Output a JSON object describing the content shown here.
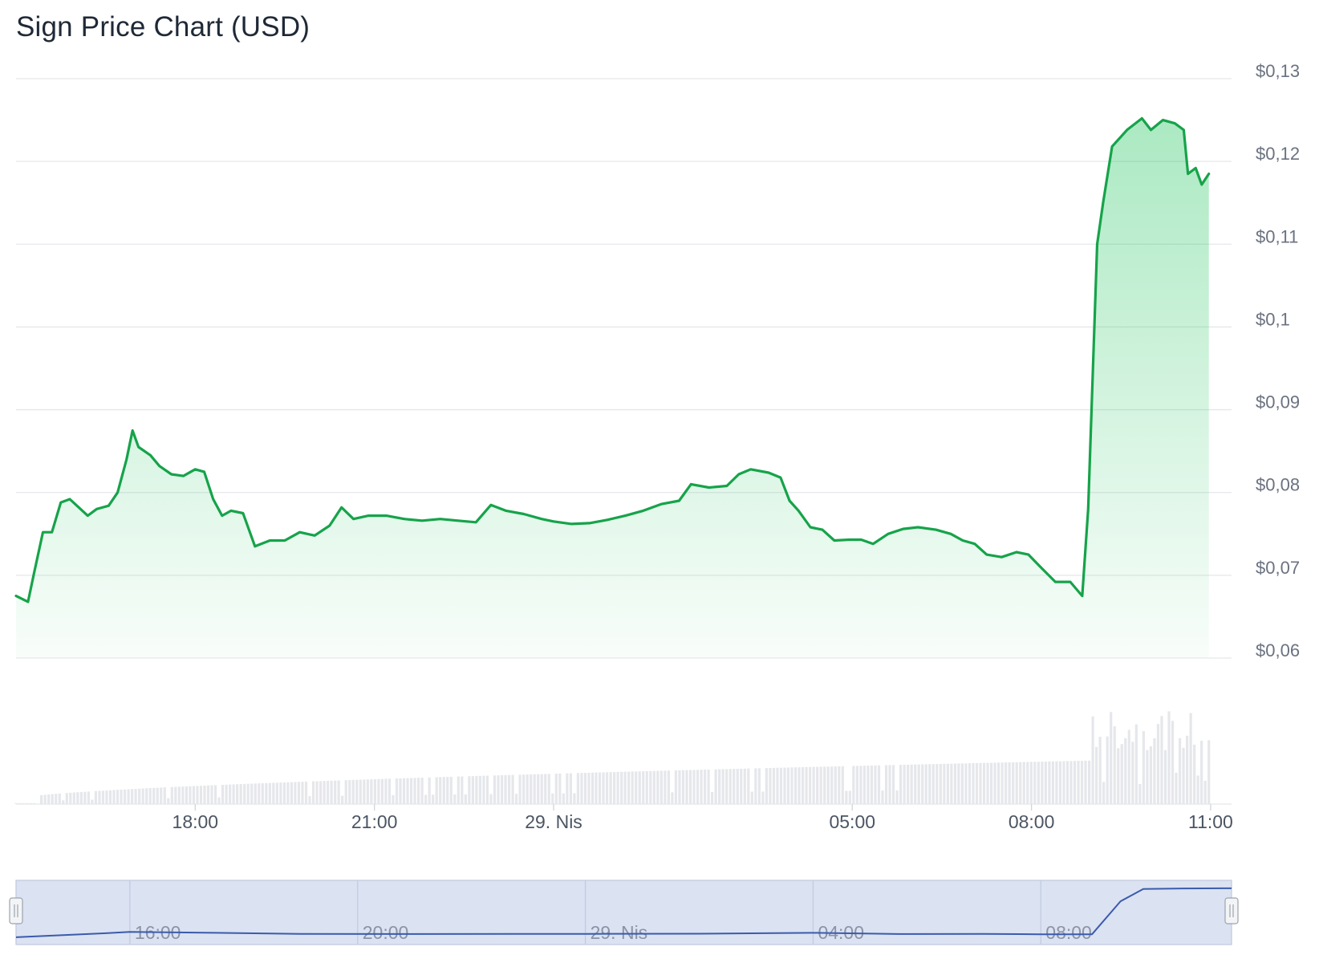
{
  "title": "Sign Price Chart (USD)",
  "colors": {
    "price_line": "#16a34a",
    "price_fill": "#22c55e",
    "grid": "#e5e7eb",
    "volume": "#e5e7eb",
    "navigator_fill": "#dbe2f2",
    "navigator_line": "#3b5bab"
  },
  "chart_data": {
    "type": "area",
    "title": "Sign Price Chart (USD)",
    "y_axis": {
      "position": "right",
      "min": 0.06,
      "max": 0.13,
      "ticks": [
        0.13,
        0.12,
        0.11,
        0.1,
        0.09,
        0.08,
        0.07,
        0.06
      ],
      "tick_labels": [
        "$0,13",
        "$0,12",
        "$0,11",
        "$0,1",
        "$0,09",
        "$0,08",
        "$0,07",
        "$0,06"
      ]
    },
    "x_axis": {
      "unit": "hours (28 Nis – 29 Nis)",
      "min": 15.0,
      "max": 35.35,
      "ticks": [
        18,
        21,
        24,
        29,
        32,
        35
      ],
      "tick_labels": [
        "18:00",
        "21:00",
        "29. Nis",
        "05:00",
        "08:00",
        "11:00"
      ]
    },
    "grid": true,
    "legend": "none",
    "series": [
      {
        "type": "area",
        "points": [
          [
            15.0,
            0.0675
          ],
          [
            15.2,
            0.0668
          ],
          [
            15.3,
            0.0702
          ],
          [
            15.45,
            0.0752
          ],
          [
            15.6,
            0.0752
          ],
          [
            15.75,
            0.0788
          ],
          [
            15.9,
            0.0792
          ],
          [
            16.05,
            0.0782
          ],
          [
            16.2,
            0.0772
          ],
          [
            16.35,
            0.078
          ],
          [
            16.55,
            0.0784
          ],
          [
            16.7,
            0.08
          ],
          [
            16.85,
            0.084
          ],
          [
            16.95,
            0.0875
          ],
          [
            17.05,
            0.0855
          ],
          [
            17.25,
            0.0845
          ],
          [
            17.4,
            0.0832
          ],
          [
            17.6,
            0.0822
          ],
          [
            17.8,
            0.082
          ],
          [
            18.0,
            0.0828
          ],
          [
            18.15,
            0.0825
          ],
          [
            18.3,
            0.0792
          ],
          [
            18.45,
            0.0772
          ],
          [
            18.6,
            0.0778
          ],
          [
            18.8,
            0.0775
          ],
          [
            19.0,
            0.0735
          ],
          [
            19.25,
            0.0742
          ],
          [
            19.5,
            0.0742
          ],
          [
            19.75,
            0.0752
          ],
          [
            20.0,
            0.0748
          ],
          [
            20.25,
            0.076
          ],
          [
            20.45,
            0.0782
          ],
          [
            20.65,
            0.0768
          ],
          [
            20.9,
            0.0772
          ],
          [
            21.2,
            0.0772
          ],
          [
            21.5,
            0.0768
          ],
          [
            21.8,
            0.0766
          ],
          [
            22.1,
            0.0768
          ],
          [
            22.4,
            0.0766
          ],
          [
            22.7,
            0.0764
          ],
          [
            22.95,
            0.0785
          ],
          [
            23.2,
            0.0778
          ],
          [
            23.5,
            0.0774
          ],
          [
            23.8,
            0.0768
          ],
          [
            24.0,
            0.0765
          ],
          [
            24.3,
            0.0762
          ],
          [
            24.6,
            0.0763
          ],
          [
            24.9,
            0.0767
          ],
          [
            25.2,
            0.0772
          ],
          [
            25.5,
            0.0778
          ],
          [
            25.8,
            0.0786
          ],
          [
            26.1,
            0.079
          ],
          [
            26.3,
            0.081
          ],
          [
            26.6,
            0.0806
          ],
          [
            26.9,
            0.0808
          ],
          [
            27.1,
            0.0822
          ],
          [
            27.3,
            0.0828
          ],
          [
            27.6,
            0.0824
          ],
          [
            27.8,
            0.0818
          ],
          [
            27.95,
            0.079
          ],
          [
            28.1,
            0.0778
          ],
          [
            28.3,
            0.0758
          ],
          [
            28.5,
            0.0755
          ],
          [
            28.7,
            0.0742
          ],
          [
            28.95,
            0.0743
          ],
          [
            29.15,
            0.0743
          ],
          [
            29.35,
            0.0738
          ],
          [
            29.6,
            0.075
          ],
          [
            29.85,
            0.0756
          ],
          [
            30.1,
            0.0758
          ],
          [
            30.4,
            0.0755
          ],
          [
            30.65,
            0.075
          ],
          [
            30.85,
            0.0742
          ],
          [
            31.05,
            0.0738
          ],
          [
            31.25,
            0.0725
          ],
          [
            31.5,
            0.0722
          ],
          [
            31.75,
            0.0728
          ],
          [
            31.95,
            0.0725
          ],
          [
            32.15,
            0.071
          ],
          [
            32.4,
            0.0692
          ],
          [
            32.65,
            0.0692
          ],
          [
            32.85,
            0.0675
          ],
          [
            32.95,
            0.078
          ],
          [
            33.1,
            0.11
          ],
          [
            33.2,
            0.115
          ],
          [
            33.35,
            0.1218
          ],
          [
            33.6,
            0.1238
          ],
          [
            33.85,
            0.1252
          ],
          [
            34.0,
            0.1238
          ],
          [
            34.2,
            0.125
          ],
          [
            34.4,
            0.1246
          ],
          [
            34.55,
            0.1238
          ],
          [
            34.62,
            0.1185
          ],
          [
            34.75,
            0.1192
          ],
          [
            34.85,
            0.1172
          ],
          [
            34.97,
            0.1185
          ]
        ]
      }
    ],
    "volume": {
      "description": "relative volume bars beneath price chart (unitless)",
      "min": 0.0,
      "max": 1.0
    },
    "navigator": {
      "tick_labels": [
        "16:00",
        "20:00",
        "29. Nis",
        "04:00",
        "08:00"
      ],
      "ticks": [
        16,
        20,
        24,
        28,
        32
      ]
    }
  }
}
